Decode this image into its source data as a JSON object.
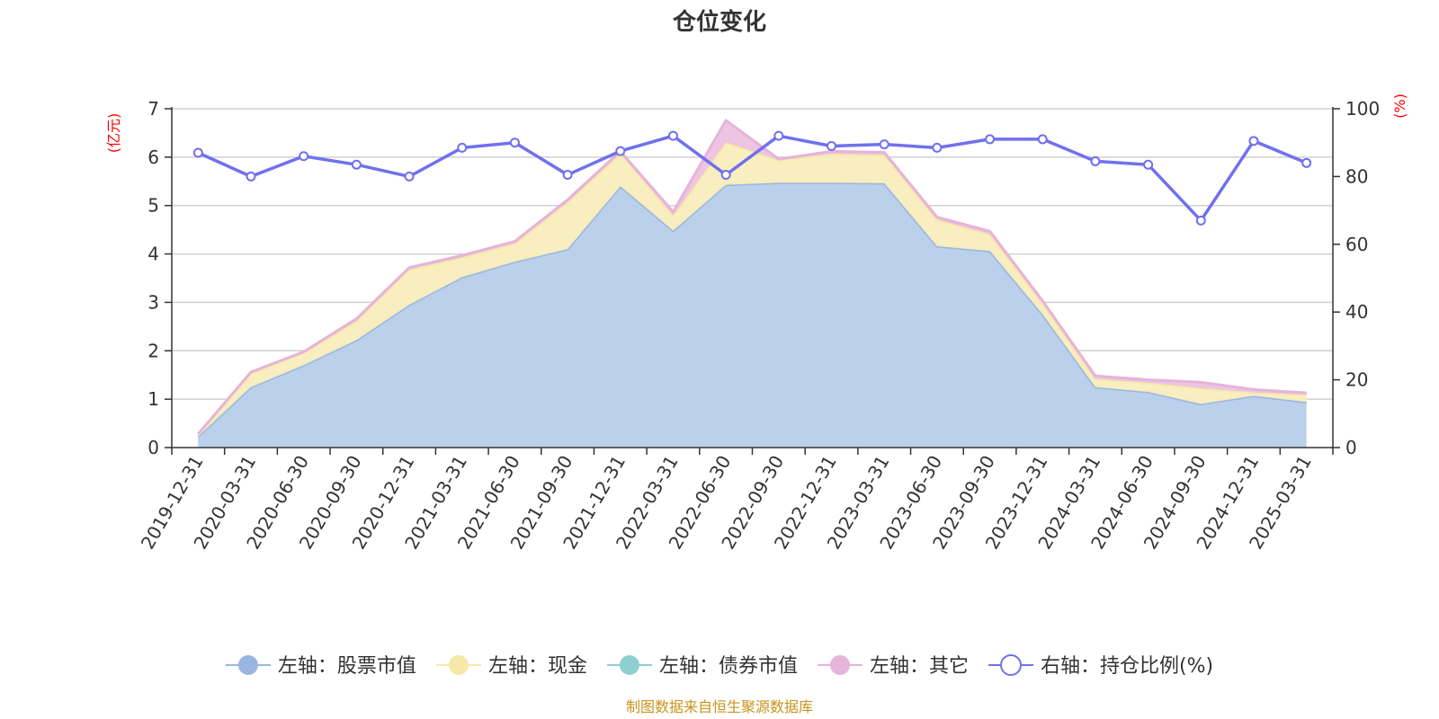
{
  "chart_data": {
    "type": "area",
    "title": "仓位变化",
    "left_axis_unit": "(亿元)",
    "right_axis_unit": "(%)",
    "left_ylim": [
      0,
      7
    ],
    "left_ticks": [
      0,
      1,
      2,
      3,
      4,
      5,
      6,
      7
    ],
    "right_ylim": [
      0,
      100
    ],
    "right_ticks": [
      0,
      20,
      40,
      60,
      80,
      100
    ],
    "grid": true,
    "legend_position": "bottom",
    "categories": [
      "2019-12-31",
      "2020-03-31",
      "2020-06-30",
      "2020-09-30",
      "2020-12-31",
      "2021-03-31",
      "2021-06-30",
      "2021-09-30",
      "2021-12-31",
      "2022-03-31",
      "2022-06-30",
      "2022-09-30",
      "2022-12-31",
      "2023-03-31",
      "2023-06-30",
      "2023-09-30",
      "2023-12-31",
      "2024-03-31",
      "2024-06-30",
      "2024-09-30",
      "2024-12-31",
      "2025-03-31"
    ],
    "series": [
      {
        "name": "左轴：股票市值",
        "axis": "left",
        "kind": "stacked-area",
        "color": "#9ab6e0",
        "fill": "#b7cdea",
        "values": [
          0.23,
          1.25,
          1.7,
          2.22,
          2.95,
          3.52,
          3.84,
          4.1,
          5.4,
          4.48,
          5.43,
          5.47,
          5.47,
          5.46,
          4.16,
          4.06,
          2.75,
          1.25,
          1.15,
          0.9,
          1.07,
          0.94
        ]
      },
      {
        "name": "左轴：现金",
        "axis": "left",
        "kind": "stacked-area",
        "color": "#f6e8a6",
        "fill": "#f8edbc",
        "values": [
          0.03,
          0.28,
          0.26,
          0.4,
          0.73,
          0.41,
          0.38,
          0.97,
          0.68,
          0.32,
          0.88,
          0.47,
          0.6,
          0.59,
          0.55,
          0.35,
          0.23,
          0.17,
          0.19,
          0.33,
          0.07,
          0.15
        ]
      },
      {
        "name": "左轴：债券市值",
        "axis": "left",
        "kind": "stacked-area",
        "color": "#8ecfcf",
        "fill": "#a9dbdb",
        "values": [
          0,
          0,
          0,
          0,
          0,
          0,
          0,
          0,
          0,
          0,
          0,
          0,
          0,
          0,
          0,
          0,
          0,
          0,
          0,
          0,
          0,
          0
        ]
      },
      {
        "name": "左轴：其它",
        "axis": "left",
        "kind": "stacked-area",
        "color": "#e6b3da",
        "fill": "#ecc2e2",
        "values": [
          0.02,
          0.03,
          0.02,
          0.04,
          0.04,
          0.04,
          0.04,
          0.05,
          0.04,
          0.07,
          0.45,
          0.02,
          0.05,
          0.05,
          0.05,
          0.06,
          0.05,
          0.06,
          0.06,
          0.12,
          0.06,
          0.04
        ]
      },
      {
        "name": "右轴：持仓比例(%)",
        "axis": "right",
        "kind": "line",
        "color": "#7070ee",
        "values": [
          87,
          80,
          86,
          83.5,
          80,
          88.5,
          90,
          80.5,
          87.5,
          92,
          80.5,
          92,
          89,
          89.5,
          88.5,
          91,
          91,
          84.5,
          83.5,
          67,
          90.5,
          84
        ]
      }
    ]
  },
  "source_note": "制图数据来自恒生聚源数据库"
}
